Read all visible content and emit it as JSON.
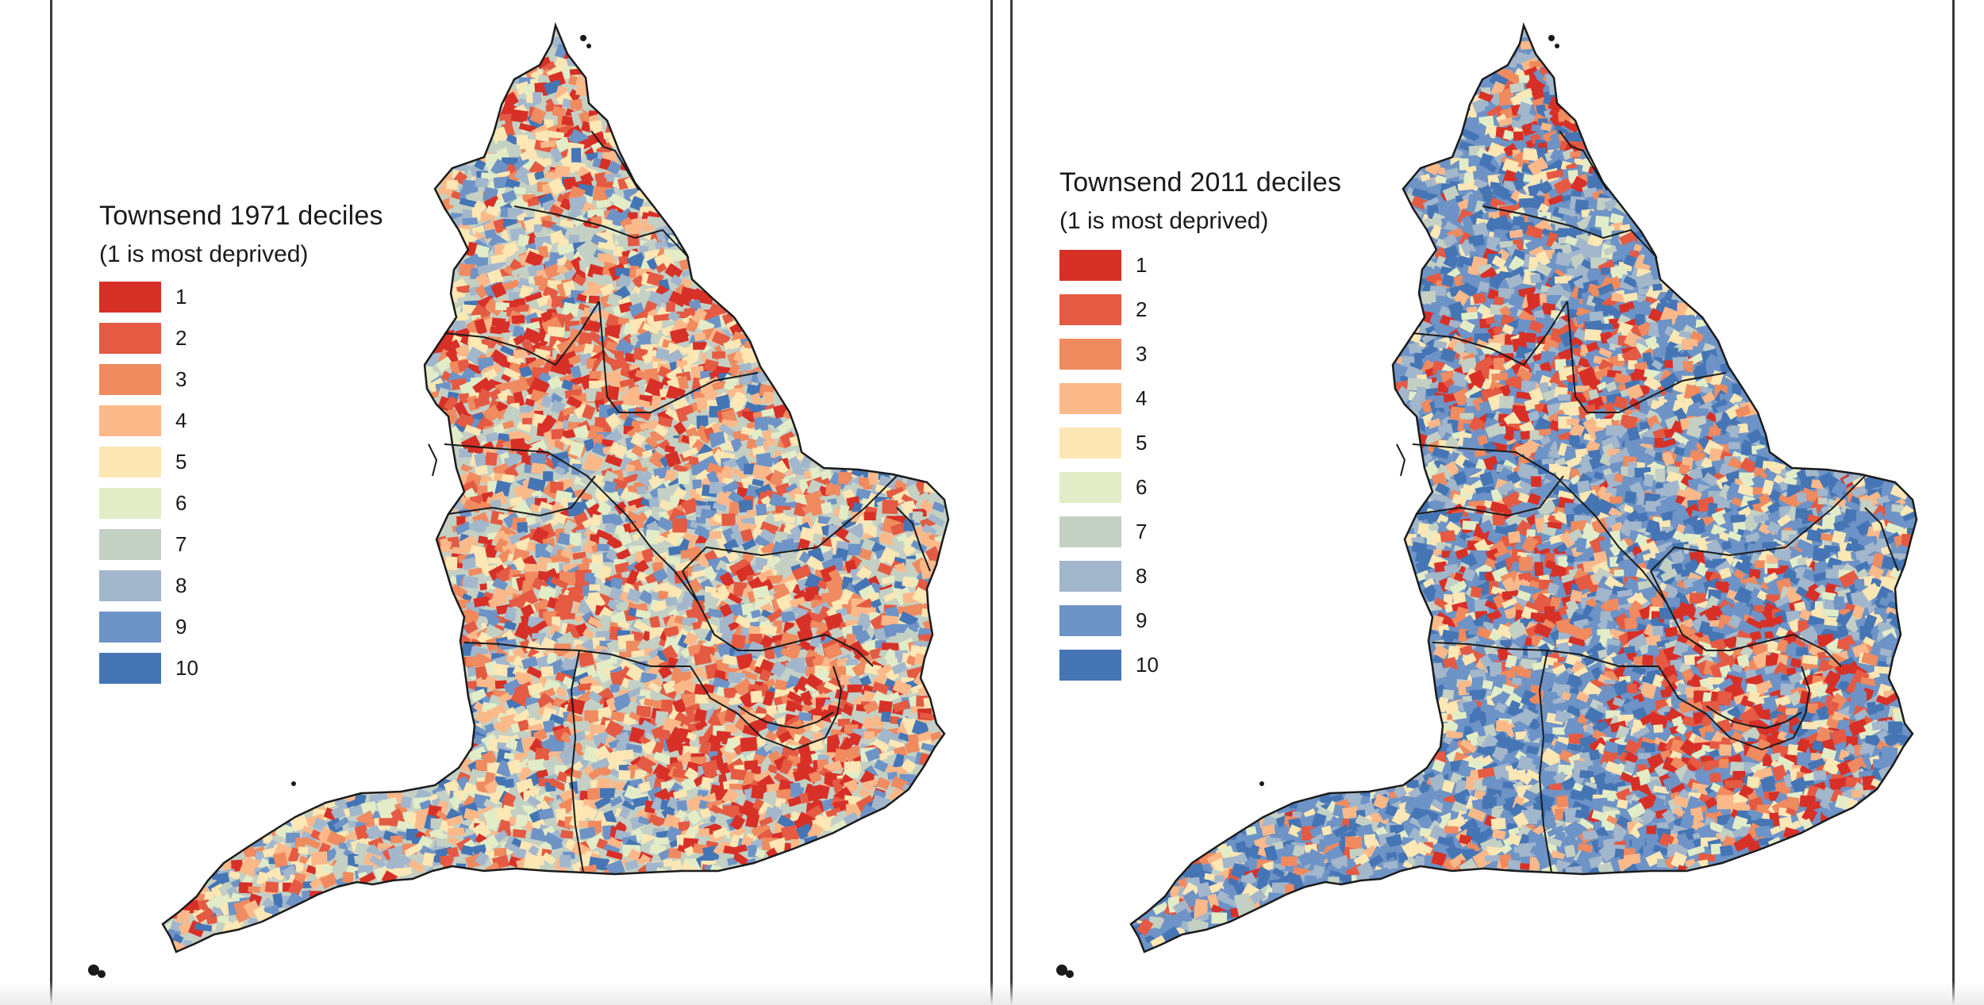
{
  "maps": [
    {
      "id": "1971",
      "legend_title": "Townsend 1971 deciles",
      "legend_subtitle": "(1 is most deprived)",
      "profile": "deprived"
    },
    {
      "id": "2011",
      "legend_title": "Townsend 2011 deciles",
      "legend_subtitle": "(1 is most deprived)",
      "profile": "affluent"
    }
  ],
  "deciles": [
    {
      "label": "1",
      "color": "#d73027"
    },
    {
      "label": "2",
      "color": "#e45a42"
    },
    {
      "label": "3",
      "color": "#f08a5f"
    },
    {
      "label": "4",
      "color": "#fbb98a"
    },
    {
      "label": "5",
      "color": "#fde7b4"
    },
    {
      "label": "6",
      "color": "#e2edc8"
    },
    {
      "label": "7",
      "color": "#c4d0c4"
    },
    {
      "label": "8",
      "color": "#a2b6cc"
    },
    {
      "label": "9",
      "color": "#6e93c6"
    },
    {
      "label": "10",
      "color": "#4575b4"
    }
  ],
  "boundary_color": "#1a1a1a"
}
